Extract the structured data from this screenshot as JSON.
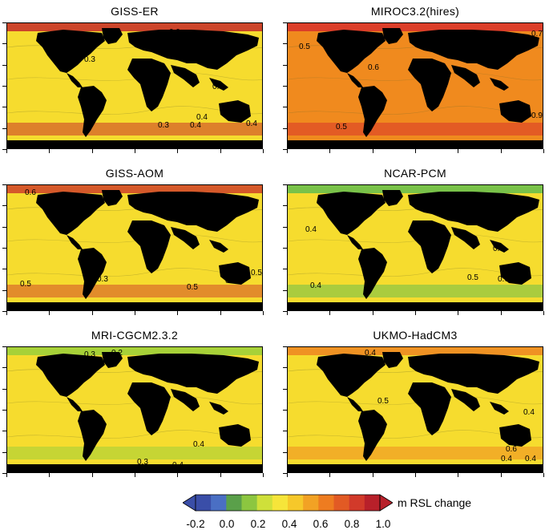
{
  "panels": [
    {
      "title": "GISS-ER",
      "base": "#f6dc2e",
      "accent": "#c8342a",
      "labels": [
        {
          "t": "0.3"
        },
        {
          "t": "0.4"
        },
        {
          "t": "0.4"
        },
        {
          "t": "0.3"
        },
        {
          "t": "0.4"
        },
        {
          "t": "0.4"
        },
        {
          "t": "0.9"
        }
      ]
    },
    {
      "title": "MIROC3.2(hires)",
      "base": "#f08a1e",
      "accent": "#d8352a",
      "labels": [
        {
          "t": "0.5"
        },
        {
          "t": "0.6"
        },
        {
          "t": "0.7"
        },
        {
          "t": "0.9"
        },
        {
          "t": "0.5"
        },
        {
          "t": "0.6"
        }
      ]
    },
    {
      "title": "GISS-AOM",
      "base": "#f6dc2e",
      "accent": "#d24a2a",
      "labels": [
        {
          "t": "0.6"
        },
        {
          "t": "0.5"
        },
        {
          "t": "0.5"
        },
        {
          "t": "0.3"
        },
        {
          "t": "0.5"
        },
        {
          "t": "0.4"
        }
      ]
    },
    {
      "title": "NCAR-PCM",
      "base": "#f6dc2e",
      "accent": "#6bbf4c",
      "labels": [
        {
          "t": "0.4"
        },
        {
          "t": "0.3"
        },
        {
          "t": "0.4"
        },
        {
          "t": "0.5"
        },
        {
          "t": "0.6"
        }
      ]
    },
    {
      "title": "MRI-CGCM2.3.2",
      "base": "#f6dc2e",
      "accent": "#9ecf3a",
      "labels": [
        {
          "t": "0.3"
        },
        {
          "t": "0.4"
        },
        {
          "t": "0.4"
        },
        {
          "t": "0.3"
        },
        {
          "t": "0.2"
        }
      ]
    },
    {
      "title": "UKMO-HadCM3",
      "base": "#f6dc2e",
      "accent": "#ee8a22",
      "labels": [
        {
          "t": "0.4"
        },
        {
          "t": "0.5"
        },
        {
          "t": "0.4"
        },
        {
          "t": "0.6"
        },
        {
          "t": "0.4"
        },
        {
          "t": "0.4"
        }
      ]
    }
  ],
  "colorbar": {
    "label": "m RSL change",
    "ticks": [
      "-0.2",
      "0.0",
      "0.2",
      "0.4",
      "0.6",
      "0.8",
      "1.0"
    ],
    "colors": [
      "#3a4ea8",
      "#4a6fc4",
      "#5aa04a",
      "#8cc640",
      "#cfe03a",
      "#f6e53a",
      "#f6c82a",
      "#f2a224",
      "#ee7c20",
      "#e25a24",
      "#d23a2a",
      "#b8202a"
    ]
  }
}
